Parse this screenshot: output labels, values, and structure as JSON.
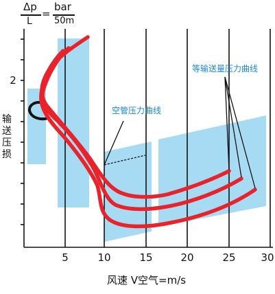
{
  "chart_data": {
    "type": "line",
    "formula": {
      "lhs_numerator": "Δp",
      "lhs_denominator": "L",
      "equals": "=",
      "rhs_numerator": "bar",
      "rhs_denominator": "50m"
    },
    "ylabel": "输送压损",
    "xlabel": "风速 V空气=m/s",
    "x_ticks": [
      "5",
      "10",
      "15",
      "20",
      "25",
      "30"
    ],
    "y_ticks": [
      "2"
    ],
    "xlim": [
      0,
      30
    ],
    "grid": "vertical",
    "annotations": {
      "empty_pipe": "空管压力曲线",
      "equal_conveying": "等输送量压力曲线"
    },
    "colors": {
      "curve": "#e8232c",
      "band": "#a7dbf3",
      "annotation": "#1a86d6",
      "axis": "#111111"
    }
  }
}
